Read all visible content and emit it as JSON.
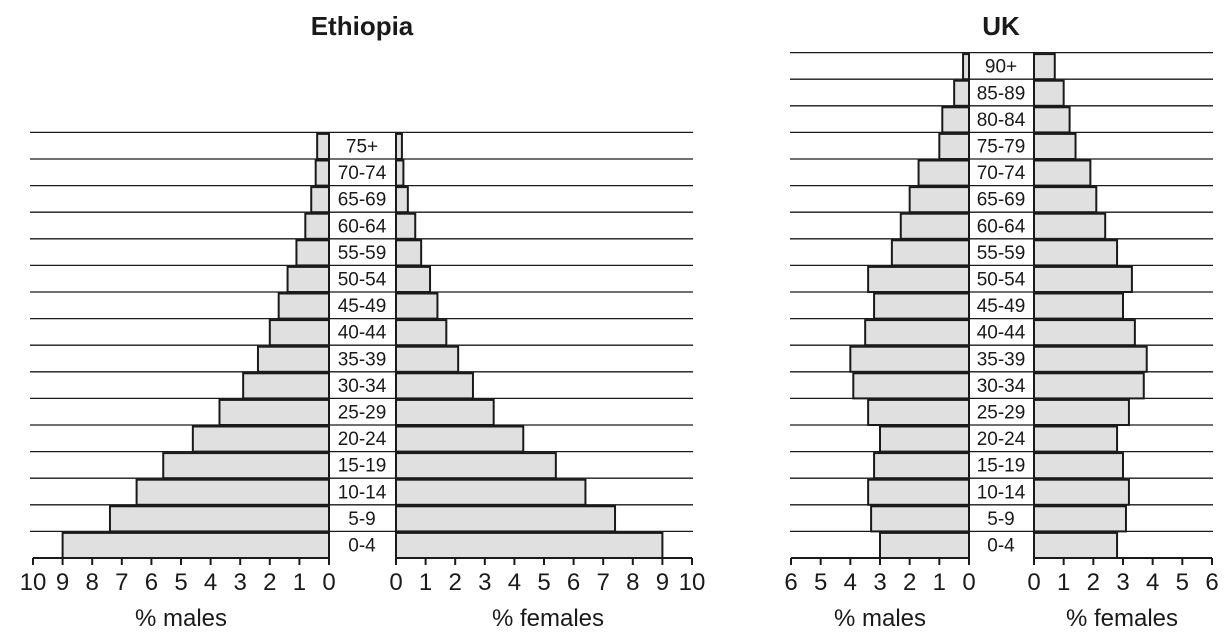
{
  "colors": {
    "bar_fill": "#e0e0e0",
    "stroke": "#1a1a1a",
    "background": "#ffffff"
  },
  "chart_data": [
    {
      "type": "bar",
      "orientation": "horizontal-pyramid",
      "title": "Ethiopia",
      "categories": [
        "0-4",
        "5-9",
        "10-14",
        "15-19",
        "20-24",
        "25-29",
        "30-34",
        "35-39",
        "40-44",
        "45-49",
        "50-54",
        "55-59",
        "60-64",
        "65-69",
        "70-74",
        "75+"
      ],
      "series": [
        {
          "name": "% males",
          "values": [
            9.0,
            7.4,
            6.5,
            5.6,
            4.6,
            3.7,
            2.9,
            2.4,
            2.0,
            1.7,
            1.4,
            1.1,
            0.8,
            0.6,
            0.45,
            0.4
          ]
        },
        {
          "name": "% females",
          "values": [
            9.0,
            7.4,
            6.4,
            5.4,
            4.3,
            3.3,
            2.6,
            2.1,
            1.7,
            1.4,
            1.15,
            0.85,
            0.65,
            0.4,
            0.25,
            0.2
          ]
        }
      ],
      "xlabel_left": "% males",
      "xlabel_right": "% females",
      "xlim": [
        0,
        10
      ],
      "ticks_left": [
        "10",
        "9",
        "8",
        "7",
        "6",
        "5",
        "4",
        "3",
        "2",
        "1",
        "0"
      ],
      "ticks_right": [
        "0",
        "1",
        "2",
        "3",
        "4",
        "5",
        "6",
        "7",
        "8",
        "9",
        "10"
      ],
      "grid": true
    },
    {
      "type": "bar",
      "orientation": "horizontal-pyramid",
      "title": "UK",
      "categories": [
        "0-4",
        "5-9",
        "10-14",
        "15-19",
        "20-24",
        "25-29",
        "30-34",
        "35-39",
        "40-44",
        "45-49",
        "50-54",
        "55-59",
        "60-64",
        "65-69",
        "70-74",
        "75-79",
        "80-84",
        "85-89",
        "90+"
      ],
      "series": [
        {
          "name": "% males",
          "values": [
            3.0,
            3.3,
            3.4,
            3.2,
            3.0,
            3.4,
            3.9,
            4.0,
            3.5,
            3.2,
            3.4,
            2.6,
            2.3,
            2.0,
            1.7,
            1.0,
            0.9,
            0.5,
            0.2
          ]
        },
        {
          "name": "% females",
          "values": [
            2.8,
            3.1,
            3.2,
            3.0,
            2.8,
            3.2,
            3.7,
            3.8,
            3.4,
            3.0,
            3.3,
            2.8,
            2.4,
            2.1,
            1.9,
            1.4,
            1.2,
            1.0,
            0.7
          ]
        }
      ],
      "xlabel_left": "% males",
      "xlabel_right": "% females",
      "xlim": [
        0,
        6
      ],
      "ticks_left": [
        "6",
        "5",
        "4",
        "3",
        "2",
        "1",
        "0"
      ],
      "ticks_right": [
        "0",
        "1",
        "2",
        "3",
        "4",
        "5",
        "6"
      ],
      "grid": true
    }
  ]
}
